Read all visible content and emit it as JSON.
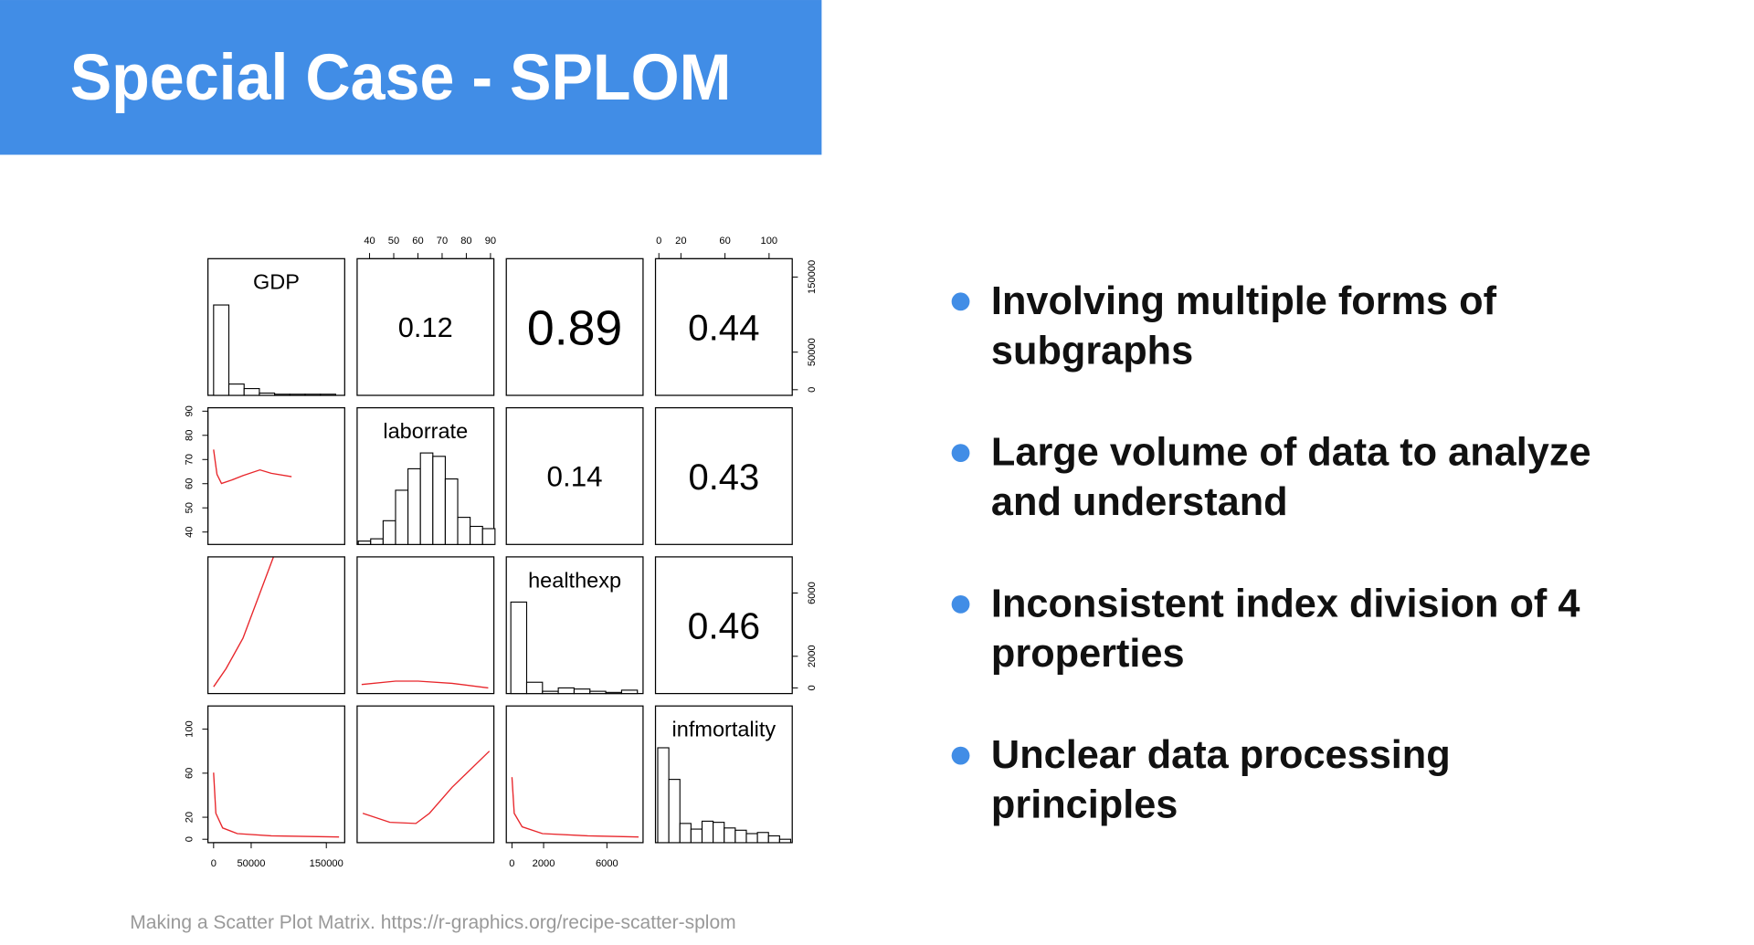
{
  "header": {
    "title": "Special Case - SPLOM"
  },
  "figure": {
    "variables": [
      {
        "name": "GDP",
        "ticks": [
          0,
          50000,
          150000
        ],
        "histogram": [
          80,
          10,
          6,
          2,
          1,
          1,
          1,
          1
        ]
      },
      {
        "name": "laborrate",
        "ticks": [
          40,
          50,
          60,
          70,
          80,
          90
        ],
        "histogram": [
          3,
          5,
          21,
          48,
          67,
          81,
          78,
          58,
          24,
          16,
          14
        ]
      },
      {
        "name": "healthexp",
        "ticks": [
          0,
          2000,
          6000
        ],
        "histogram": [
          81,
          10,
          2,
          5,
          4,
          2,
          1,
          3
        ]
      },
      {
        "name": "infmortality",
        "ticks": [
          0,
          20,
          60,
          100
        ],
        "histogram": [
          84,
          56,
          17,
          12,
          19,
          18,
          13,
          11,
          8,
          9,
          6,
          3
        ]
      }
    ],
    "correlations": [
      [
        0.12,
        0.89,
        0.44
      ],
      [
        0.14,
        0.43
      ],
      [
        0.46
      ]
    ]
  },
  "bullets": [
    [
      "Involving multiple forms of",
      "subgraphs"
    ],
    [
      "Large volume of data to analyze",
      "and understand"
    ],
    [
      "Inconsistent index division of 4",
      "properties"
    ],
    [
      "Unclear data processing",
      "principles"
    ]
  ],
  "caption": "Making a Scatter Plot Matrix. https://r-graphics.org/recipe-scatter-splom"
}
